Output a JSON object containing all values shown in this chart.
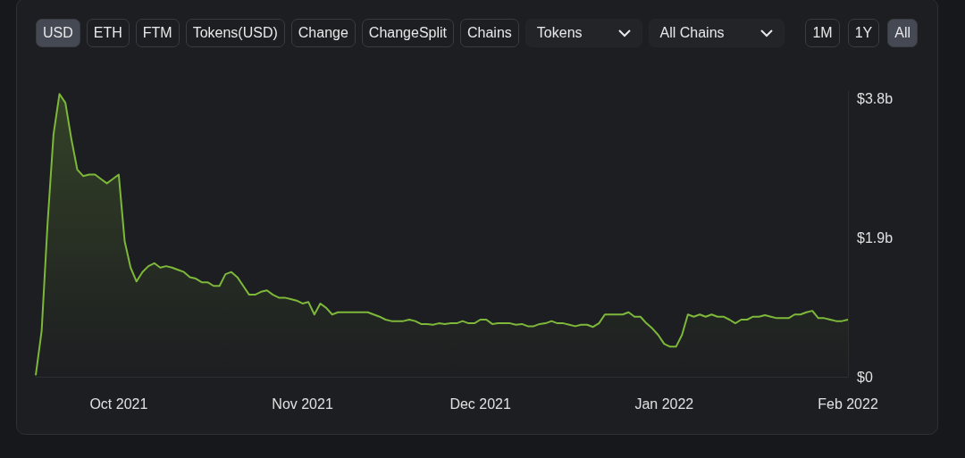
{
  "chart_data": {
    "type": "area",
    "color": "#7db83a",
    "annotations": [
      "USD",
      "ETH",
      "FTM",
      "Tokens(USD)",
      "Change",
      "ChangeSplit",
      "Chains",
      "Tokens",
      "All Chains",
      "1M",
      "1Y",
      "All"
    ],
    "x": [
      "2021-09-17",
      "2021-09-18",
      "2021-09-19",
      "2021-09-20",
      "2021-09-21",
      "2021-09-22",
      "2021-09-23",
      "2021-09-24",
      "2021-09-25",
      "2021-09-26",
      "2021-09-27",
      "2021-09-28",
      "2021-09-29",
      "2021-09-30",
      "2021-10-01",
      "2021-10-02",
      "2021-10-03",
      "2021-10-04",
      "2021-10-05",
      "2021-10-06",
      "2021-10-07",
      "2021-10-08",
      "2021-10-09",
      "2021-10-10",
      "2021-10-11",
      "2021-10-12",
      "2021-10-13",
      "2021-10-14",
      "2021-10-15",
      "2021-10-16",
      "2021-10-17",
      "2021-10-18",
      "2021-10-19",
      "2021-10-20",
      "2021-10-21",
      "2021-10-22",
      "2021-10-23",
      "2021-10-24",
      "2021-10-25",
      "2021-10-26",
      "2021-10-27",
      "2021-10-28",
      "2021-10-29",
      "2021-10-30",
      "2021-10-31",
      "2021-11-01",
      "2021-11-02",
      "2021-11-03",
      "2021-11-04",
      "2021-11-05",
      "2021-11-06",
      "2021-11-07",
      "2021-11-08",
      "2021-11-09",
      "2021-11-10",
      "2021-11-11",
      "2021-11-12",
      "2021-11-13",
      "2021-11-14",
      "2021-11-15",
      "2021-11-16",
      "2021-11-17",
      "2021-11-18",
      "2021-11-19",
      "2021-11-20",
      "2021-11-21",
      "2021-11-22",
      "2021-11-23",
      "2021-11-24",
      "2021-11-25",
      "2021-11-26",
      "2021-11-27",
      "2021-11-28",
      "2021-11-29",
      "2021-11-30",
      "2021-12-01",
      "2021-12-02",
      "2021-12-03",
      "2021-12-04",
      "2021-12-05",
      "2021-12-06",
      "2021-12-07",
      "2021-12-08",
      "2021-12-09",
      "2021-12-10",
      "2021-12-11",
      "2021-12-12",
      "2021-12-13",
      "2021-12-14",
      "2021-12-15",
      "2021-12-16",
      "2021-12-17",
      "2021-12-18",
      "2021-12-19",
      "2021-12-20",
      "2021-12-21",
      "2021-12-22",
      "2021-12-23",
      "2021-12-24",
      "2021-12-25",
      "2021-12-26",
      "2021-12-27",
      "2021-12-28",
      "2021-12-29",
      "2021-12-30",
      "2021-12-31",
      "2022-01-01",
      "2022-01-02",
      "2022-01-03",
      "2022-01-04",
      "2022-01-05",
      "2022-01-06",
      "2022-01-07",
      "2022-01-08",
      "2022-01-09",
      "2022-01-10",
      "2022-01-11",
      "2022-01-12",
      "2022-01-13",
      "2022-01-14",
      "2022-01-15",
      "2022-01-16",
      "2022-01-17",
      "2022-01-18",
      "2022-01-19",
      "2022-01-20",
      "2022-01-21",
      "2022-01-22",
      "2022-01-23",
      "2022-01-24",
      "2022-01-25",
      "2022-01-26",
      "2022-01-27",
      "2022-01-28",
      "2022-01-29",
      "2022-01-30",
      "2022-01-31",
      "2022-02-01"
    ],
    "values": [
      0.02,
      0.63,
      2.1,
      3.31,
      3.86,
      3.74,
      3.25,
      2.83,
      2.74,
      2.76,
      2.76,
      2.7,
      2.64,
      2.7,
      2.76,
      1.85,
      1.49,
      1.3,
      1.43,
      1.51,
      1.55,
      1.49,
      1.51,
      1.49,
      1.46,
      1.43,
      1.36,
      1.34,
      1.29,
      1.29,
      1.24,
      1.24,
      1.4,
      1.43,
      1.36,
      1.24,
      1.12,
      1.12,
      1.16,
      1.18,
      1.12,
      1.08,
      1.08,
      1.06,
      1.04,
      1.0,
      1.02,
      0.85,
      1.0,
      0.94,
      0.85,
      0.88,
      0.88,
      0.88,
      0.88,
      0.88,
      0.88,
      0.85,
      0.82,
      0.78,
      0.76,
      0.76,
      0.76,
      0.78,
      0.76,
      0.72,
      0.72,
      0.71,
      0.73,
      0.72,
      0.73,
      0.73,
      0.76,
      0.73,
      0.73,
      0.78,
      0.78,
      0.72,
      0.73,
      0.73,
      0.73,
      0.71,
      0.72,
      0.69,
      0.69,
      0.72,
      0.73,
      0.76,
      0.73,
      0.73,
      0.71,
      0.69,
      0.71,
      0.71,
      0.68,
      0.73,
      0.85,
      0.85,
      0.85,
      0.85,
      0.88,
      0.82,
      0.82,
      0.73,
      0.66,
      0.57,
      0.45,
      0.41,
      0.41,
      0.57,
      0.85,
      0.82,
      0.85,
      0.82,
      0.85,
      0.82,
      0.82,
      0.78,
      0.73,
      0.78,
      0.78,
      0.82,
      0.82,
      0.84,
      0.82,
      0.8,
      0.8,
      0.8,
      0.85,
      0.85,
      0.88,
      0.9,
      0.8,
      0.8,
      0.78,
      0.76,
      0.76,
      0.78
    ],
    "xticks": [
      {
        "value": "2021-10-01",
        "label": "Oct 2021"
      },
      {
        "value": "2021-11-01",
        "label": "Nov 2021"
      },
      {
        "value": "2021-12-01",
        "label": "Dec 2021"
      },
      {
        "value": "2022-01-01",
        "label": "Jan 2022"
      },
      {
        "value": "2022-02-01",
        "label": "Feb 2022"
      }
    ],
    "yticks": [
      {
        "value": 0,
        "label": "$0"
      },
      {
        "value": 1.9,
        "label": "$1.9b"
      },
      {
        "value": 3.8,
        "label": "$3.8b"
      }
    ],
    "xlim": [
      "2021-09-17",
      "2022-02-01"
    ],
    "ylim": [
      0,
      3.9
    ],
    "grid": false,
    "marker": "none",
    "line_style": "solid"
  }
}
